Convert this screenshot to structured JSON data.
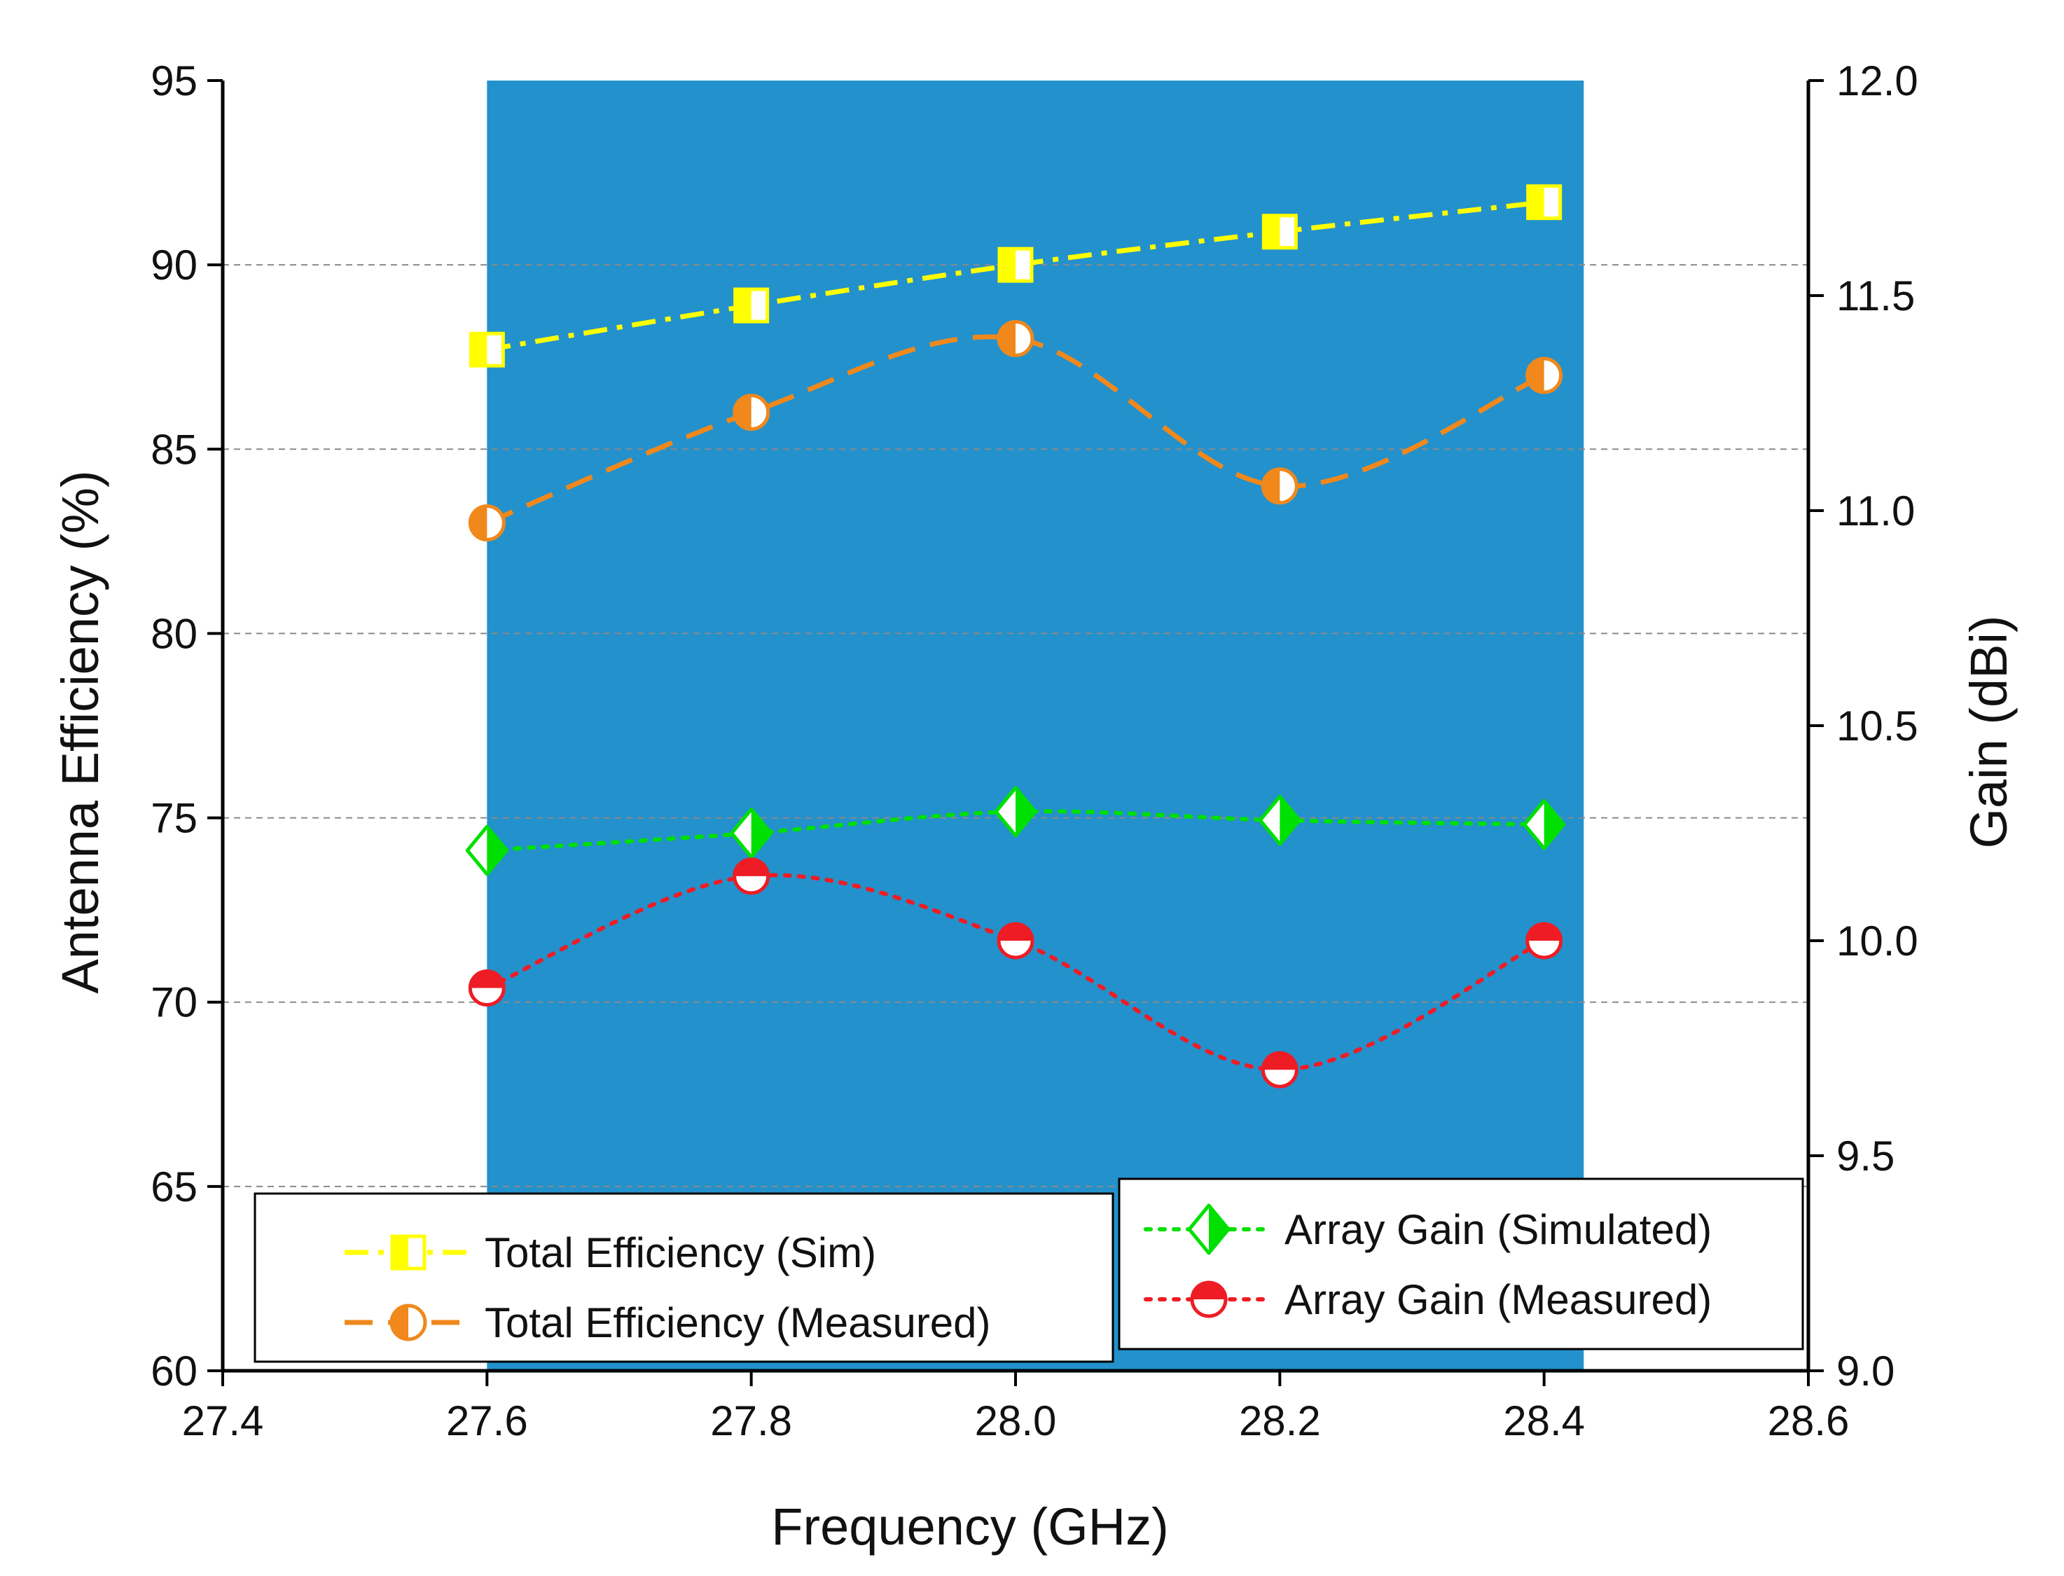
{
  "chart_data": {
    "type": "line",
    "x": [
      27.6,
      27.8,
      28.0,
      28.2,
      28.4
    ],
    "xlabel": "Frequency (GHz)",
    "ylabel_left": "Antenna Efficiency (%)",
    "ylabel_right": "Gain (dBi)",
    "xlim": [
      27.4,
      28.6
    ],
    "ylim_left": [
      60,
      95
    ],
    "ylim_right": [
      9.0,
      12.0
    ],
    "x_ticks": [
      "27.4",
      "27.6",
      "27.8",
      "28.0",
      "28.2",
      "28.4",
      "28.6"
    ],
    "y_left_ticks": [
      "60",
      "65",
      "70",
      "75",
      "80",
      "85",
      "90",
      "95"
    ],
    "y_right_ticks": [
      "9.0",
      "9.5",
      "10.0",
      "10.5",
      "11.0",
      "11.5",
      "12.0"
    ],
    "shaded_band": {
      "from": 27.6,
      "to": 28.43,
      "color": "#2391cc"
    },
    "grid": "horizontal dashed",
    "series": [
      {
        "name": "Total Efficiency (Sim)",
        "axis": "left",
        "values": [
          87.7,
          88.9,
          90.0,
          90.9,
          91.7
        ],
        "color": "#ffff00",
        "marker": "square-half",
        "line": "dash-dot"
      },
      {
        "name": "Total Efficiency (Measured)",
        "axis": "left",
        "values": [
          83.0,
          86.0,
          88.0,
          84.0,
          87.0
        ],
        "color": "#f0881c",
        "marker": "circle-half-left",
        "line": "dashed"
      },
      {
        "name": "Array Gain (Simulated)",
        "axis": "right",
        "values": [
          10.21,
          10.25,
          10.3,
          10.28,
          10.27
        ],
        "color": "#00e000",
        "marker": "diamond-half",
        "line": "dotted"
      },
      {
        "name": "Array Gain (Measured)",
        "axis": "right",
        "values": [
          9.89,
          10.15,
          10.0,
          9.7,
          10.0
        ],
        "color": "#ee1c24",
        "marker": "circle-half-top",
        "line": "dotted"
      }
    ]
  }
}
